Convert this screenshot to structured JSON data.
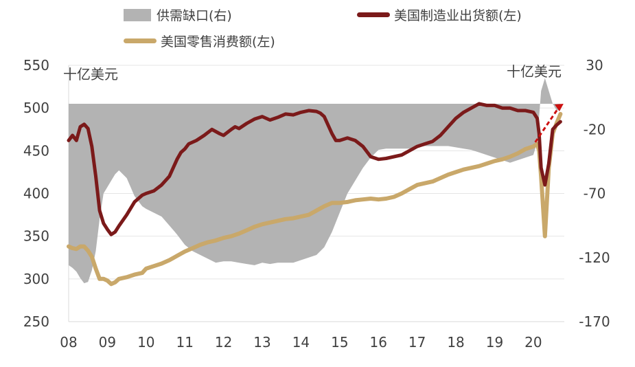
{
  "legend": {
    "gap": "供需缺口(右)",
    "shipments": "美国制造业出货额(左)",
    "retail": "美国零售消费额(左)"
  },
  "units": {
    "left": "十亿美元",
    "right": "十亿美元"
  },
  "colors": {
    "gap": "#b3b3b3",
    "shipments": "#7b1a1a",
    "retail": "#c9a86a",
    "arrow": "#cc1010"
  },
  "chart_data": {
    "type": "line",
    "x_tick_labels": [
      "08",
      "09",
      "10",
      "11",
      "12",
      "13",
      "14",
      "15",
      "16",
      "17",
      "18",
      "19",
      "20"
    ],
    "x_ticks": [
      2008,
      2009,
      2010,
      2011,
      2012,
      2013,
      2014,
      2015,
      2016,
      2017,
      2018,
      2019,
      2020
    ],
    "xlim": [
      2008.0,
      2020.8
    ],
    "ylim_left": [
      250,
      550
    ],
    "yticks_left": [
      250,
      300,
      350,
      400,
      450,
      500,
      550
    ],
    "ylim_right": [
      -170,
      30
    ],
    "yticks_right": [
      -170,
      -120,
      -70,
      -20,
      30
    ],
    "grid": true,
    "series": [
      {
        "name": "美国制造业出货额(左)",
        "axis": "left",
        "x": [
          2008.0,
          2008.1,
          2008.2,
          2008.3,
          2008.4,
          2008.5,
          2008.6,
          2008.7,
          2008.8,
          2008.9,
          2009.0,
          2009.1,
          2009.2,
          2009.3,
          2009.5,
          2009.7,
          2009.9,
          2010.0,
          2010.2,
          2010.4,
          2010.6,
          2010.8,
          2010.9,
          2011.0,
          2011.1,
          2011.3,
          2011.5,
          2011.7,
          2011.9,
          2012.0,
          2012.2,
          2012.3,
          2012.4,
          2012.6,
          2012.8,
          2013.0,
          2013.2,
          2013.4,
          2013.6,
          2013.8,
          2014.0,
          2014.2,
          2014.4,
          2014.5,
          2014.6,
          2014.8,
          2014.9,
          2015.0,
          2015.2,
          2015.4,
          2015.6,
          2015.8,
          2016.0,
          2016.2,
          2016.4,
          2016.6,
          2016.8,
          2017.0,
          2017.2,
          2017.4,
          2017.6,
          2017.8,
          2018.0,
          2018.2,
          2018.4,
          2018.6,
          2018.8,
          2019.0,
          2019.2,
          2019.4,
          2019.6,
          2019.8,
          2020.0,
          2020.1,
          2020.15,
          2020.2,
          2020.3,
          2020.4,
          2020.5,
          2020.6,
          2020.7
        ],
        "values": [
          462,
          468,
          462,
          478,
          481,
          476,
          455,
          420,
          380,
          365,
          358,
          352,
          355,
          362,
          375,
          390,
          398,
          400,
          403,
          410,
          420,
          440,
          448,
          452,
          458,
          462,
          468,
          475,
          470,
          468,
          475,
          478,
          476,
          482,
          487,
          490,
          486,
          489,
          493,
          492,
          495,
          497,
          496,
          494,
          490,
          470,
          462,
          462,
          465,
          462,
          455,
          443,
          440,
          441,
          443,
          445,
          450,
          455,
          458,
          461,
          468,
          478,
          488,
          495,
          500,
          505,
          503,
          503,
          500,
          500,
          497,
          497,
          495,
          488,
          470,
          430,
          410,
          435,
          475,
          480,
          484
        ]
      },
      {
        "name": "美国零售消费额(左)",
        "axis": "left",
        "x": [
          2008.0,
          2008.1,
          2008.2,
          2008.3,
          2008.4,
          2008.5,
          2008.6,
          2008.7,
          2008.8,
          2008.9,
          2009.0,
          2009.1,
          2009.2,
          2009.3,
          2009.5,
          2009.7,
          2009.9,
          2010.0,
          2010.2,
          2010.4,
          2010.6,
          2010.8,
          2011.0,
          2011.2,
          2011.4,
          2011.6,
          2011.8,
          2012.0,
          2012.2,
          2012.4,
          2012.6,
          2012.8,
          2013.0,
          2013.2,
          2013.4,
          2013.6,
          2013.8,
          2014.0,
          2014.2,
          2014.4,
          2014.6,
          2014.8,
          2015.0,
          2015.2,
          2015.4,
          2015.6,
          2015.8,
          2016.0,
          2016.2,
          2016.4,
          2016.6,
          2016.8,
          2017.0,
          2017.2,
          2017.4,
          2017.6,
          2017.8,
          2018.0,
          2018.2,
          2018.4,
          2018.6,
          2018.8,
          2019.0,
          2019.2,
          2019.4,
          2019.6,
          2019.8,
          2020.0,
          2020.1,
          2020.15,
          2020.2,
          2020.3,
          2020.4,
          2020.5,
          2020.6,
          2020.7
        ],
        "values": [
          338,
          336,
          335,
          338,
          338,
          333,
          326,
          312,
          300,
          300,
          298,
          294,
          296,
          300,
          302,
          305,
          307,
          312,
          315,
          318,
          322,
          327,
          332,
          336,
          340,
          343,
          345,
          348,
          350,
          353,
          357,
          361,
          364,
          366,
          368,
          370,
          371,
          373,
          375,
          380,
          385,
          389,
          389,
          390,
          392,
          393,
          394,
          393,
          394,
          396,
          400,
          405,
          410,
          412,
          414,
          418,
          422,
          425,
          428,
          430,
          432,
          435,
          438,
          440,
          443,
          447,
          452,
          455,
          458,
          450,
          420,
          350,
          430,
          470,
          482,
          493
        ]
      },
      {
        "name": "供需缺口(右)",
        "axis": "right",
        "x": [
          2008.0,
          2008.1,
          2008.2,
          2008.3,
          2008.4,
          2008.5,
          2008.6,
          2008.7,
          2008.8,
          2008.9,
          2009.0,
          2009.1,
          2009.2,
          2009.3,
          2009.5,
          2009.7,
          2009.9,
          2010.0,
          2010.2,
          2010.4,
          2010.6,
          2010.8,
          2011.0,
          2011.2,
          2011.4,
          2011.6,
          2011.8,
          2012.0,
          2012.2,
          2012.4,
          2012.6,
          2012.8,
          2013.0,
          2013.2,
          2013.4,
          2013.6,
          2013.8,
          2014.0,
          2014.2,
          2014.4,
          2014.6,
          2014.8,
          2015.0,
          2015.2,
          2015.4,
          2015.6,
          2015.8,
          2016.0,
          2016.2,
          2016.4,
          2016.6,
          2016.8,
          2017.0,
          2017.2,
          2017.4,
          2017.6,
          2017.8,
          2018.0,
          2018.2,
          2018.4,
          2018.6,
          2018.8,
          2019.0,
          2019.2,
          2019.4,
          2019.6,
          2019.8,
          2020.0,
          2020.1,
          2020.15,
          2020.2,
          2020.3,
          2020.4,
          2020.5,
          2020.6,
          2020.7
        ],
        "values": [
          -126,
          -128,
          -131,
          -136,
          -140,
          -139,
          -130,
          -115,
          -90,
          -70,
          -65,
          -60,
          -55,
          -52,
          -58,
          -72,
          -80,
          -82,
          -85,
          -88,
          -95,
          -102,
          -110,
          -115,
          -118,
          -121,
          -124,
          -123,
          -123,
          -124,
          -125,
          -126,
          -124,
          -125,
          -124,
          -124,
          -124,
          -122,
          -120,
          -118,
          -112,
          -100,
          -85,
          -70,
          -60,
          -50,
          -42,
          -36,
          -35,
          -35,
          -35,
          -35,
          -34,
          -33,
          -33,
          -33,
          -33,
          -34,
          -35,
          -36,
          -38,
          -40,
          -42,
          -44,
          -46,
          -44,
          -42,
          -40,
          -30,
          -10,
          10,
          20,
          10,
          0,
          -5,
          -5
        ]
      }
    ]
  }
}
